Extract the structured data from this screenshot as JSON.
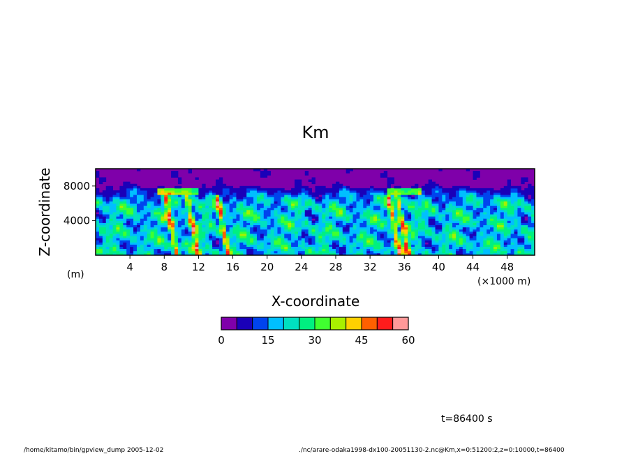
{
  "chart_data": {
    "type": "heatmap",
    "title": "Km",
    "xlabel": "X-coordinate",
    "ylabel": "Z-coordinate",
    "x_unit": "(×1000 m)",
    "y_unit": "(m)",
    "xlim": [
      0,
      51.2
    ],
    "ylim": [
      0,
      10000
    ],
    "x_ticks": [
      4,
      8,
      12,
      16,
      20,
      24,
      28,
      32,
      36,
      40,
      44,
      48
    ],
    "y_ticks": [
      4000,
      8000
    ],
    "colorbar": {
      "levels": [
        0,
        5,
        10,
        15,
        20,
        25,
        30,
        35,
        40,
        45,
        50,
        55,
        60
      ],
      "tick_labels": [
        0,
        15,
        30,
        45,
        60
      ],
      "colors": [
        "#7f00aa",
        "#1a00b8",
        "#0044ee",
        "#00bfff",
        "#00e0c0",
        "#00f080",
        "#40ff30",
        "#a8f000",
        "#ffd000",
        "#ff6000",
        "#ff1c1c",
        "#ff9999"
      ]
    },
    "time_label": "t=86400 s"
  },
  "footer": {
    "left": "/home/kitamo/bin/gpview_dump  2005-12-02",
    "right": "./nc/arare-odaka1998-dx100-20051130-2.nc@Km,x=0:51200:2,z=0:10000,t=86400"
  }
}
